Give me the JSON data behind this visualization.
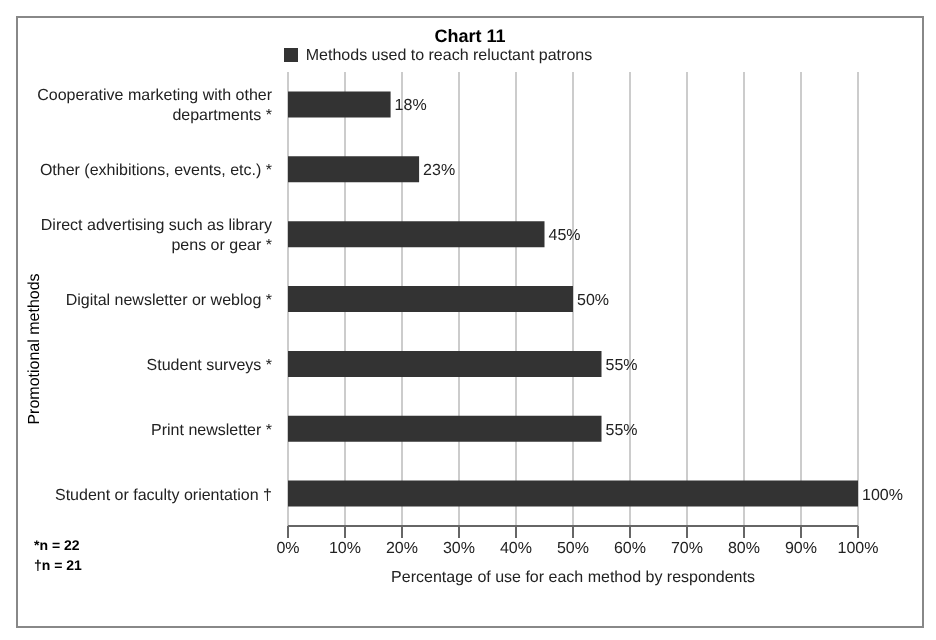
{
  "chart_data": {
    "type": "bar",
    "orientation": "horizontal",
    "title": "Chart 11",
    "xlabel": "Percentage of use for each method by respondents",
    "ylabel": "Promotional methods",
    "categories": [
      "Cooperative marketing with other departments *",
      "Other (exhibitions, events, etc.) *",
      "Direct advertising such as library pens or gear *",
      "Digital newsletter or weblog *",
      "Student surveys *",
      "Print newsletter *",
      "Student or faculty orientation †"
    ],
    "series": [
      {
        "name": "Methods used to reach reluctant patrons",
        "color": "#333333",
        "values": [
          18,
          23,
          45,
          50,
          55,
          55,
          100
        ],
        "value_labels": [
          "18%",
          "23%",
          "45%",
          "50%",
          "55%",
          "55%",
          "100%"
        ]
      }
    ],
    "xlim": [
      0,
      100
    ],
    "xticks": [
      {
        "value": 0,
        "label": "0%"
      },
      {
        "value": 10,
        "label": "10%"
      },
      {
        "value": 20,
        "label": "20%"
      },
      {
        "value": 30,
        "label": "30%"
      },
      {
        "value": 40,
        "label": "40%"
      },
      {
        "value": 50,
        "label": "50%"
      },
      {
        "value": 60,
        "label": "60%"
      },
      {
        "value": 70,
        "label": "70%"
      },
      {
        "value": 80,
        "label": "80%"
      },
      {
        "value": 90,
        "label": "90%"
      },
      {
        "value": 100,
        "label": "100%"
      }
    ],
    "grid": "x",
    "legend": "top",
    "annotations": [
      "*n = 22",
      "†n = 21"
    ]
  }
}
